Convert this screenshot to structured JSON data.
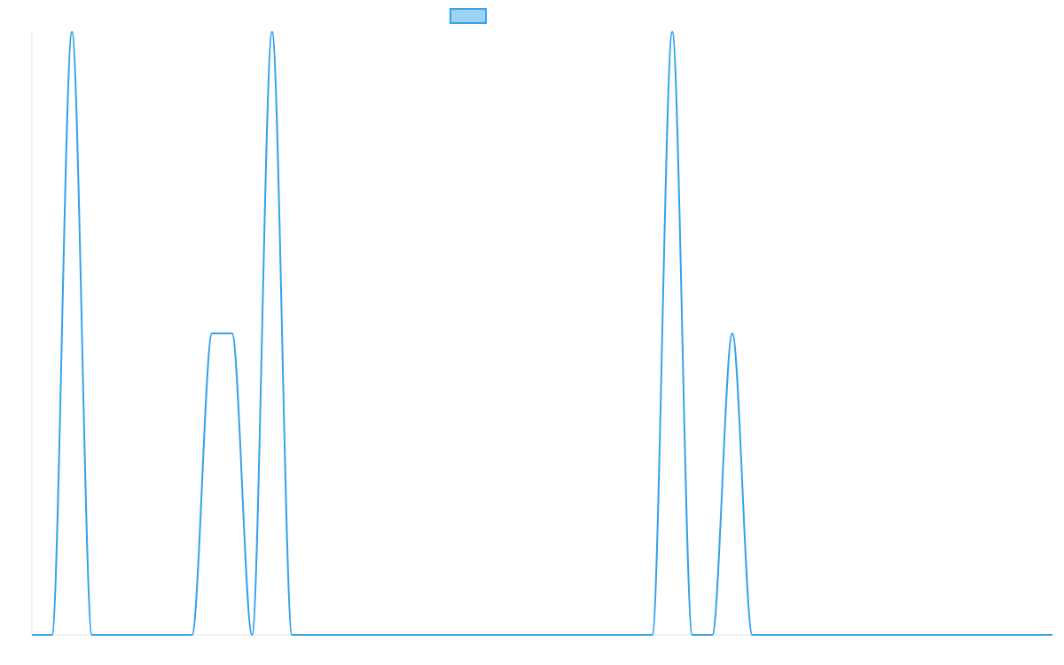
{
  "chart_data": {
    "type": "line",
    "title": "",
    "xlabel": "",
    "ylabel": "",
    "grid": false,
    "legend": {
      "position": "top-center",
      "entries": [
        {
          "label": "",
          "fill_color": "#9dd2f5",
          "border_color": "#36a2eb"
        }
      ]
    },
    "series": [
      {
        "color": "#36a2eb",
        "x": [
          0,
          1,
          2,
          3,
          4,
          5,
          6,
          7,
          8,
          9,
          10,
          11,
          12,
          13,
          14,
          15,
          16,
          17,
          18,
          19,
          20,
          21,
          22,
          23,
          24,
          25,
          26,
          27,
          28,
          29,
          30,
          31,
          32,
          33,
          34,
          35,
          36,
          37,
          38,
          39,
          40,
          41,
          42,
          43,
          44,
          45,
          46,
          47,
          48,
          49,
          50,
          51
        ],
        "values": [
          0,
          0,
          1,
          0,
          0,
          0,
          0,
          0,
          0,
          0.5,
          0.5,
          0,
          1,
          0,
          0,
          0,
          0,
          0,
          0,
          0,
          0,
          0,
          0,
          0,
          0,
          0,
          0,
          0,
          0,
          0,
          0,
          0,
          1,
          0,
          0,
          0.5,
          0,
          0,
          0,
          0,
          0,
          0,
          0,
          0,
          0,
          0,
          0,
          0,
          0,
          0,
          0,
          0
        ]
      }
    ],
    "xlim": [
      0,
      51
    ],
    "ylim": [
      0,
      1
    ]
  }
}
